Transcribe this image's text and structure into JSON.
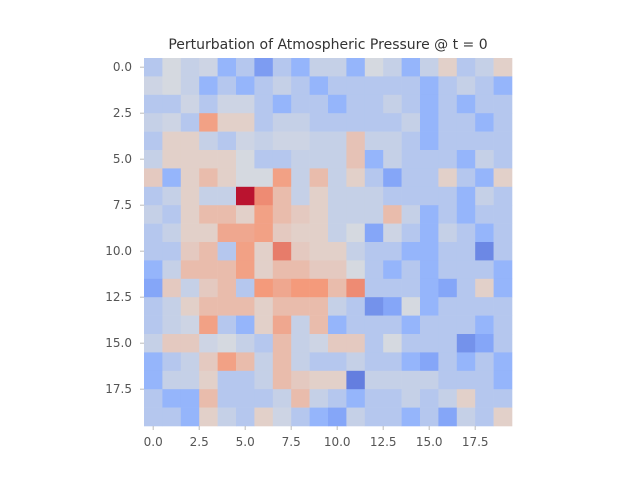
{
  "chart_data": {
    "type": "heatmap",
    "title": "Perturbation of Atmospheric Pressure @ t =  0",
    "rows": 20,
    "cols": 20,
    "colormap": "coolwarm",
    "vmin": -1.0,
    "vmax": 1.0,
    "x_ticks": [
      0.0,
      2.5,
      5.0,
      7.5,
      10.0,
      12.5,
      15.0,
      17.5
    ],
    "x_tick_labels": [
      "0.0",
      "2.5",
      "5.0",
      "7.5",
      "10.0",
      "12.5",
      "15.0",
      "17.5"
    ],
    "y_ticks": [
      0.0,
      2.5,
      5.0,
      7.5,
      10.0,
      12.5,
      15.0,
      17.5
    ],
    "y_tick_labels": [
      "0.0",
      "2.5",
      "5.0",
      "7.5",
      "10.0",
      "12.5",
      "15.0",
      "17.5"
    ],
    "grid": false,
    "values": [
      [
        -0.25,
        -0.05,
        -0.15,
        -0.1,
        -0.45,
        -0.25,
        -0.6,
        -0.25,
        -0.45,
        -0.15,
        -0.15,
        -0.45,
        -0.05,
        -0.15,
        -0.45,
        -0.15,
        0.1,
        -0.25,
        -0.15,
        0.1
      ],
      [
        -0.1,
        -0.05,
        -0.15,
        -0.45,
        -0.25,
        -0.45,
        -0.25,
        -0.15,
        -0.25,
        -0.45,
        -0.25,
        -0.25,
        -0.25,
        -0.25,
        -0.25,
        -0.45,
        -0.25,
        -0.15,
        -0.25,
        -0.45
      ],
      [
        -0.25,
        -0.25,
        -0.1,
        -0.25,
        -0.1,
        -0.1,
        -0.25,
        -0.45,
        -0.25,
        -0.25,
        -0.45,
        -0.25,
        -0.25,
        -0.15,
        -0.25,
        -0.45,
        -0.25,
        -0.45,
        -0.25,
        -0.25
      ],
      [
        -0.15,
        -0.1,
        -0.25,
        0.45,
        0.1,
        0.1,
        -0.25,
        -0.15,
        -0.15,
        -0.25,
        -0.25,
        -0.25,
        -0.25,
        -0.25,
        -0.15,
        -0.45,
        -0.25,
        -0.25,
        -0.45,
        -0.25
      ],
      [
        -0.25,
        0.1,
        0.1,
        -0.15,
        -0.25,
        -0.1,
        -0.15,
        -0.1,
        -0.1,
        -0.15,
        -0.15,
        0.2,
        -0.15,
        -0.15,
        -0.25,
        -0.45,
        -0.25,
        -0.25,
        -0.25,
        -0.25
      ],
      [
        -0.15,
        0.1,
        0.1,
        0.1,
        0.1,
        -0.05,
        -0.25,
        -0.25,
        -0.15,
        -0.15,
        -0.15,
        0.2,
        -0.45,
        -0.15,
        -0.25,
        -0.25,
        -0.25,
        -0.45,
        -0.15,
        -0.25
      ],
      [
        0.15,
        -0.45,
        0.1,
        0.25,
        0.1,
        -0.05,
        -0.05,
        0.45,
        -0.15,
        0.25,
        -0.15,
        0.1,
        -0.25,
        -0.55,
        -0.25,
        -0.25,
        0.1,
        -0.25,
        -0.45,
        0.1
      ],
      [
        -0.25,
        -0.15,
        0.1,
        -0.15,
        -0.15,
        0.95,
        0.55,
        0.25,
        -0.15,
        0.1,
        -0.15,
        -0.15,
        -0.15,
        -0.25,
        -0.25,
        -0.25,
        -0.25,
        -0.45,
        -0.15,
        -0.25
      ],
      [
        -0.15,
        -0.25,
        0.1,
        0.25,
        0.25,
        0.1,
        0.45,
        0.25,
        0.15,
        0.1,
        -0.15,
        -0.15,
        -0.15,
        0.25,
        -0.15,
        -0.45,
        -0.25,
        -0.45,
        -0.25,
        -0.25
      ],
      [
        -0.25,
        -0.15,
        0.1,
        0.1,
        0.4,
        0.4,
        0.45,
        0.15,
        0.1,
        0.1,
        -0.15,
        -0.05,
        -0.55,
        -0.1,
        -0.25,
        -0.45,
        -0.15,
        -0.25,
        -0.45,
        -0.25
      ],
      [
        -0.25,
        -0.25,
        0.15,
        0.25,
        -0.25,
        0.45,
        0.1,
        0.6,
        0.15,
        0.1,
        0.1,
        -0.15,
        -0.25,
        -0.25,
        -0.45,
        -0.45,
        -0.25,
        -0.25,
        -0.7,
        -0.25
      ],
      [
        -0.45,
        -0.15,
        0.25,
        0.25,
        0.25,
        0.45,
        0.1,
        0.25,
        0.25,
        0.15,
        0.15,
        -0.05,
        -0.25,
        -0.45,
        -0.25,
        -0.45,
        -0.25,
        -0.25,
        -0.25,
        -0.45
      ],
      [
        -0.55,
        0.15,
        -0.15,
        0.15,
        0.25,
        -0.25,
        0.5,
        0.4,
        0.5,
        0.5,
        0.25,
        0.55,
        -0.25,
        -0.25,
        -0.25,
        -0.45,
        -0.55,
        -0.25,
        0.1,
        -0.45
      ],
      [
        -0.25,
        -0.15,
        0.1,
        0.25,
        0.25,
        0.25,
        0.1,
        0.25,
        0.25,
        0.25,
        -0.15,
        -0.25,
        -0.65,
        -0.55,
        -0.05,
        -0.45,
        -0.25,
        -0.25,
        -0.25,
        -0.25
      ],
      [
        -0.25,
        -0.15,
        -0.1,
        0.45,
        -0.25,
        -0.45,
        0.1,
        0.4,
        -0.15,
        0.25,
        -0.45,
        -0.25,
        -0.25,
        -0.25,
        -0.45,
        -0.25,
        -0.25,
        -0.25,
        -0.45,
        -0.25
      ],
      [
        -0.15,
        0.15,
        0.15,
        -0.1,
        -0.05,
        -0.15,
        -0.25,
        0.25,
        -0.15,
        -0.1,
        0.15,
        0.15,
        -0.25,
        -0.05,
        -0.25,
        -0.25,
        -0.25,
        -0.65,
        -0.55,
        -0.25
      ],
      [
        -0.45,
        -0.25,
        -0.15,
        0.15,
        0.45,
        0.25,
        -0.15,
        0.25,
        -0.15,
        -0.25,
        -0.25,
        -0.15,
        -0.25,
        -0.25,
        -0.45,
        -0.55,
        -0.25,
        -0.45,
        -0.25,
        -0.45
      ],
      [
        -0.45,
        -0.15,
        -0.15,
        0.1,
        -0.25,
        -0.25,
        -0.15,
        0.25,
        0.15,
        0.1,
        0.1,
        -0.75,
        -0.15,
        -0.15,
        -0.15,
        -0.15,
        -0.25,
        -0.25,
        -0.25,
        -0.45
      ],
      [
        -0.25,
        -0.45,
        -0.45,
        0.25,
        -0.25,
        -0.25,
        -0.25,
        -0.15,
        0.25,
        -0.15,
        -0.25,
        -0.45,
        -0.25,
        -0.25,
        -0.15,
        -0.25,
        -0.15,
        0.1,
        -0.25,
        -0.25
      ],
      [
        -0.25,
        -0.25,
        -0.45,
        0.1,
        -0.15,
        -0.25,
        0.1,
        -0.1,
        -0.25,
        -0.45,
        -0.55,
        -0.15,
        -0.25,
        -0.25,
        -0.45,
        -0.25,
        -0.55,
        -0.15,
        -0.25,
        0.1
      ]
    ]
  }
}
